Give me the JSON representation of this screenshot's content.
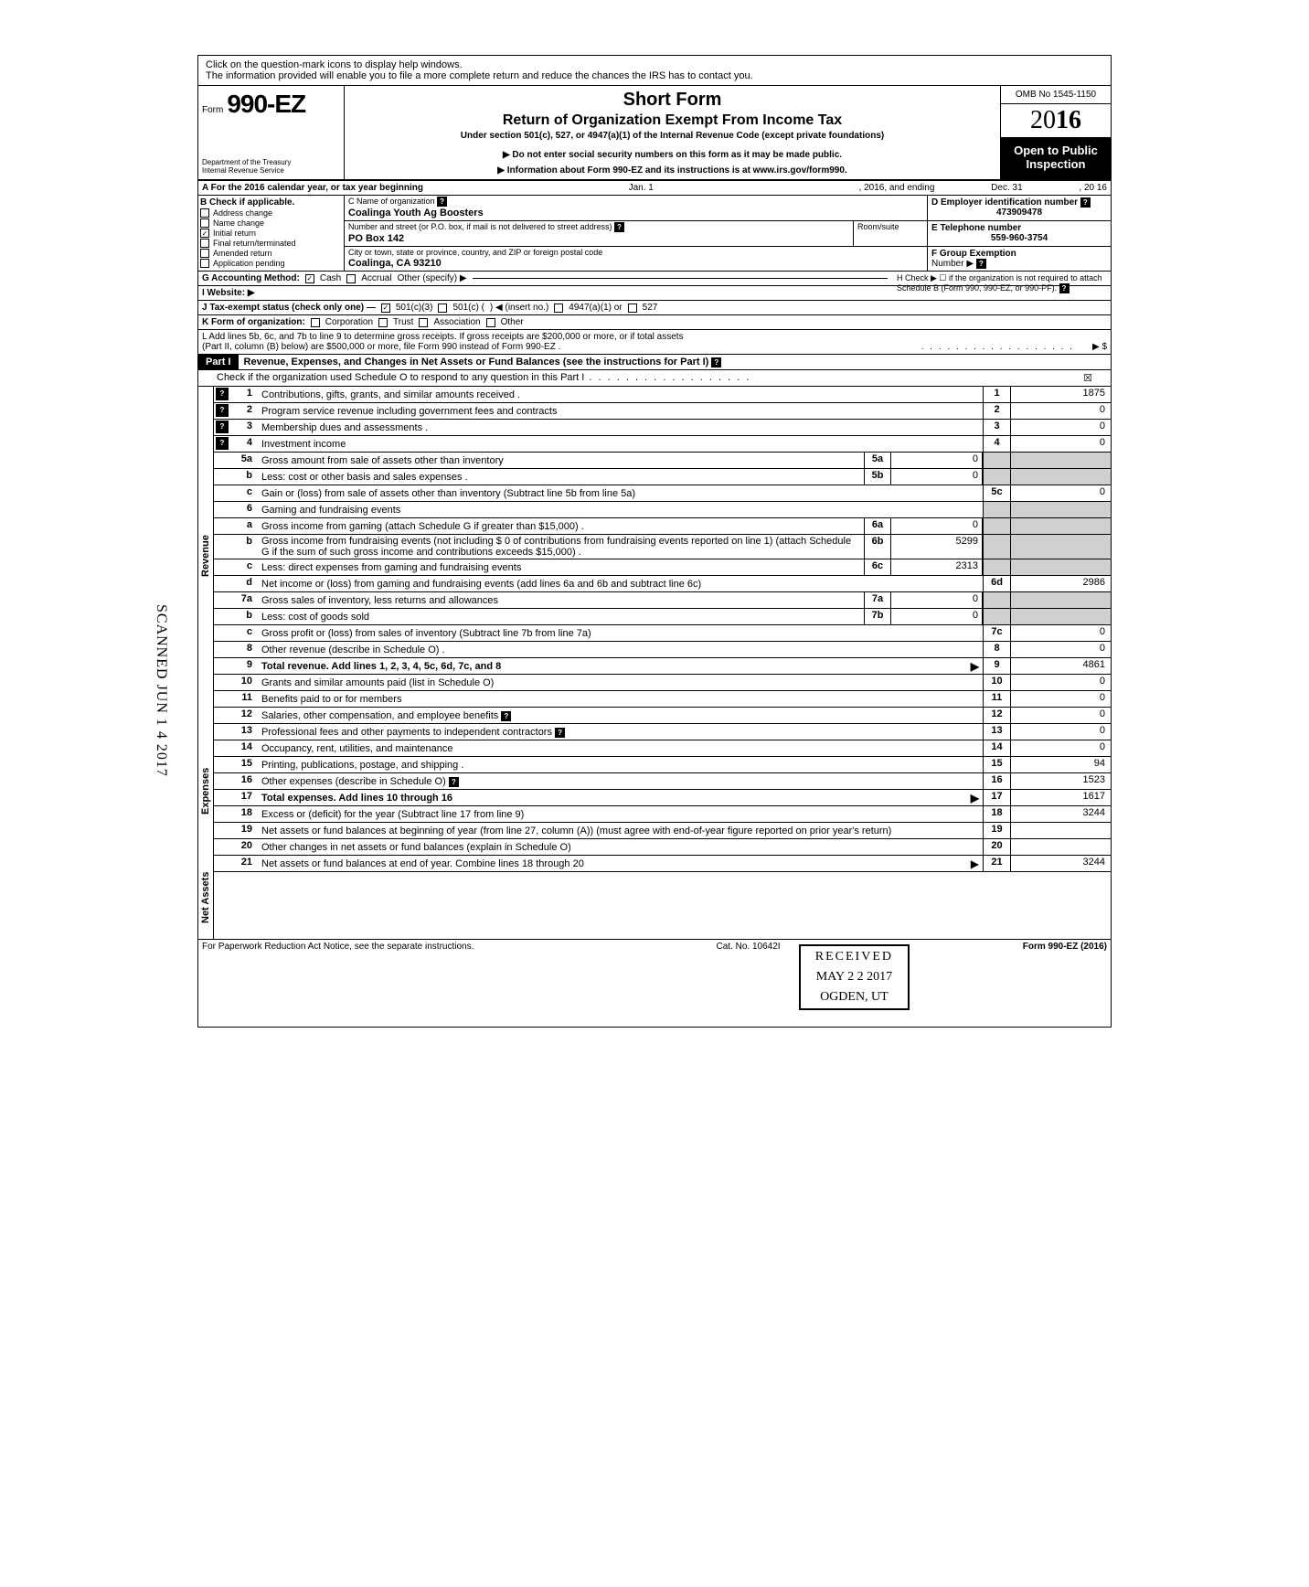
{
  "hint_line1": "Click on the question-mark icons to display help windows.",
  "hint_line2": "The information provided will enable you to file a more complete return and reduce the chances the IRS has to contact you.",
  "form_word": "Form",
  "form_number": "990-EZ",
  "dept1": "Department of the Treasury",
  "dept2": "Internal Revenue Service",
  "short_form": "Short Form",
  "return_title": "Return of Organization Exempt From Income Tax",
  "under_section": "Under section 501(c), 527, or 4947(a)(1) of the Internal Revenue Code (except private foundations)",
  "do_not_enter": "▶ Do not enter social security numbers on this form as it may be made public.",
  "info_about": "▶ Information about Form 990-EZ and its instructions is at www.irs.gov/form990.",
  "omb": "OMB No  1545-1150",
  "year_outline": "20",
  "year_bold": "16",
  "open_public1": "Open to Public",
  "open_public2": "Inspection",
  "row_a_text": "A  For the 2016 calendar year, or tax year beginning",
  "row_a_begin": "Jan. 1",
  "row_a_mid": ", 2016, and ending",
  "row_a_end": "Dec. 31",
  "row_a_year": ", 20   16",
  "b_header": "B  Check if applicable.",
  "b_items": [
    "Address change",
    "Name change",
    "Initial return",
    "Final return/terminated",
    "Amended return",
    "Application pending"
  ],
  "b_checked_index": 2,
  "c_name_label": "C  Name of organization",
  "c_name": "Coalinga Youth Ag Boosters",
  "c_addr_label": "Number and street (or P.O. box, if mail is not delivered to street address)",
  "c_room_label": "Room/suite",
  "c_addr": "PO Box 142",
  "c_city_label": "City or town, state or province, country, and ZIP or foreign postal code",
  "c_city": "Coalinga, CA 93210",
  "d_label": "D Employer identification number",
  "d_val": "473909478",
  "e_label": "E Telephone number",
  "e_val": "559-960-3754",
  "f_label": "F Group Exemption",
  "f_label2": "Number  ▶",
  "g_label": "G  Accounting Method:",
  "g_cash": "Cash",
  "g_accrual": "Accrual",
  "g_other": "Other (specify) ▶",
  "h_text": "H  Check ▶ ☐ if the organization is not required to attach Schedule B (Form 990, 990-EZ, or 990-PF).",
  "i_label": "I   Website: ▶",
  "j_label": "J  Tax-exempt status (check only one) —",
  "j_501c3": "501(c)(3)",
  "j_501c": "501(c) (",
  "j_insert": ") ◀ (insert no.)",
  "j_4947": "4947(a)(1) or",
  "j_527": "527",
  "k_label": "K  Form of organization:",
  "k_corp": "Corporation",
  "k_trust": "Trust",
  "k_assoc": "Association",
  "k_other": "Other",
  "l_text": "L  Add lines 5b, 6c, and 7b to line 9 to determine gross receipts. If gross receipts are $200,000 or more, or if total assets",
  "l_text2": "(Part II, column (B) below) are $500,000 or more, file Form 990 instead of Form 990-EZ .",
  "l_arrow": "▶   $",
  "part1_tag": "Part I",
  "part1_title": "Revenue, Expenses, and Changes in Net Assets or Fund Balances (see the instructions for Part I)",
  "sched_o": "Check if the organization used Schedule O to respond to any question in this Part I",
  "sched_o_checked": "☒",
  "side_revenue": "Revenue",
  "side_expenses": "Expenses",
  "side_netassets": "Net Assets",
  "lines": {
    "1": {
      "num": "1",
      "desc": "Contributions, gifts, grants, and similar amounts received .",
      "box": "1",
      "val": "1875",
      "icon": true
    },
    "2": {
      "num": "2",
      "desc": "Program service revenue including government fees and contracts",
      "box": "2",
      "val": "0",
      "icon": true
    },
    "3": {
      "num": "3",
      "desc": "Membership dues and assessments .",
      "box": "3",
      "val": "0",
      "icon": true
    },
    "4": {
      "num": "4",
      "desc": "Investment income",
      "box": "4",
      "val": "0",
      "icon": true
    },
    "5a": {
      "num": "5a",
      "desc": "Gross amount from sale of assets other than inventory",
      "sub": "5a",
      "subval": "0"
    },
    "5b": {
      "num": "b",
      "desc": "Less: cost or other basis and sales expenses .",
      "sub": "5b",
      "subval": "0"
    },
    "5c": {
      "num": "c",
      "desc": "Gain or (loss) from sale of assets other than inventory (Subtract line 5b from line 5a)",
      "box": "5c",
      "val": "0"
    },
    "6": {
      "num": "6",
      "desc": "Gaming and fundraising events"
    },
    "6a": {
      "num": "a",
      "desc": "Gross income from gaming (attach Schedule G if greater than $15,000) .",
      "sub": "6a",
      "subval": "0"
    },
    "6b": {
      "num": "b",
      "desc": "Gross income from fundraising events (not including  $                    0 of contributions from fundraising events reported on line 1) (attach Schedule G if the sum of such gross income and contributions exceeds $15,000) .",
      "sub": "6b",
      "subval": "5299"
    },
    "6c": {
      "num": "c",
      "desc": "Less: direct expenses from gaming and fundraising events",
      "sub": "6c",
      "subval": "2313"
    },
    "6d": {
      "num": "d",
      "desc": "Net income or (loss) from gaming and fundraising events (add lines 6a and 6b and subtract line 6c)",
      "box": "6d",
      "val": "2986"
    },
    "7a": {
      "num": "7a",
      "desc": "Gross sales of inventory, less returns and allowances",
      "sub": "7a",
      "subval": "0"
    },
    "7b": {
      "num": "b",
      "desc": "Less: cost of goods sold",
      "sub": "7b",
      "subval": "0"
    },
    "7c": {
      "num": "c",
      "desc": "Gross profit or (loss) from sales of inventory (Subtract line 7b from line 7a)",
      "box": "7c",
      "val": "0"
    },
    "8": {
      "num": "8",
      "desc": "Other revenue (describe in Schedule O) .",
      "box": "8",
      "val": "0"
    },
    "9": {
      "num": "9",
      "desc": "Total revenue. Add lines 1, 2, 3, 4, 5c, 6d, 7c, and 8",
      "box": "9",
      "val": "4861",
      "arrow": true,
      "bold": true
    },
    "10": {
      "num": "10",
      "desc": "Grants and similar amounts paid (list in Schedule O)",
      "box": "10",
      "val": "0"
    },
    "11": {
      "num": "11",
      "desc": "Benefits paid to or for members",
      "box": "11",
      "val": "0"
    },
    "12": {
      "num": "12",
      "desc": "Salaries, other compensation, and employee benefits",
      "box": "12",
      "val": "0",
      "iconafter": true
    },
    "13": {
      "num": "13",
      "desc": "Professional fees and other payments to independent contractors",
      "box": "13",
      "val": "0",
      "iconafter": true
    },
    "14": {
      "num": "14",
      "desc": "Occupancy, rent, utilities, and maintenance",
      "box": "14",
      "val": "0"
    },
    "15": {
      "num": "15",
      "desc": "Printing, publications, postage, and shipping .",
      "box": "15",
      "val": "94"
    },
    "16": {
      "num": "16",
      "desc": "Other expenses (describe in Schedule O)",
      "box": "16",
      "val": "1523",
      "iconafter": true
    },
    "17": {
      "num": "17",
      "desc": "Total expenses. Add lines 10 through 16",
      "box": "17",
      "val": "1617",
      "arrow": true,
      "bold": true
    },
    "18": {
      "num": "18",
      "desc": "Excess or (deficit) for the year (Subtract line 17 from line 9)",
      "box": "18",
      "val": "3244"
    },
    "19": {
      "num": "19",
      "desc": "Net assets or fund balances at beginning of year (from line 27, column (A)) (must agree with end-of-year figure reported on prior year's return)",
      "box": "19",
      "val": ""
    },
    "20": {
      "num": "20",
      "desc": "Other changes in net assets or fund balances (explain in Schedule O)",
      "box": "20",
      "val": ""
    },
    "21": {
      "num": "21",
      "desc": "Net assets or fund balances at end of year. Combine lines 18 through 20",
      "box": "21",
      "val": "3244",
      "arrow": true
    }
  },
  "footer_left": "For Paperwork Reduction Act Notice, see the separate instructions.",
  "footer_mid": "Cat. No. 10642I",
  "footer_right": "Form 990-EZ (2016)",
  "stamp_received": "RECEIVED",
  "stamp_date": "MAY 2 2 2017",
  "stamp_loc": "OGDEN, UT",
  "scanned": "SCANNED JUN 1 4 2017"
}
